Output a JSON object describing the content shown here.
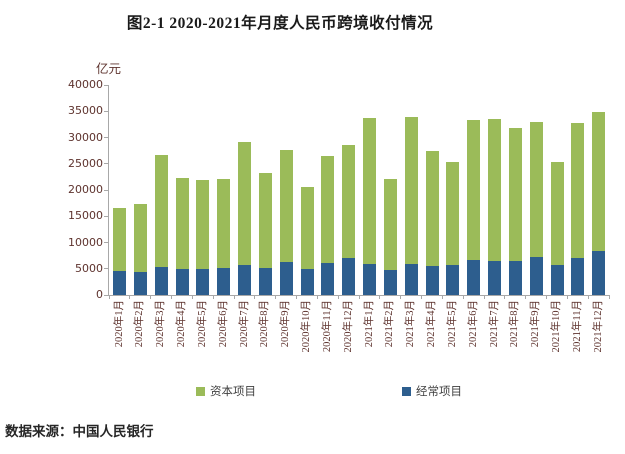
{
  "page": {
    "title": "图2-1 2020-2021年月度人民币跨境收付情况",
    "source_note": "数据来源：中国人民银行"
  },
  "colors": {
    "axis_text": "#5e332e",
    "axis_line": "#a8a8a8",
    "capital_green": "#9BBB59",
    "current_blue": "#2D5E8E"
  },
  "chart_data": {
    "type": "bar",
    "stacked": true,
    "title": "图2-1 2020-2021年月度人民币跨境收付情况",
    "unit_label": "亿元",
    "xlabel": "",
    "ylabel": "亿元",
    "ylim": [
      0,
      40000
    ],
    "y_ticks": [
      0,
      5000,
      10000,
      15000,
      20000,
      25000,
      30000,
      35000,
      40000
    ],
    "grid": false,
    "legend_position": "bottom",
    "categories": [
      "2020年1月",
      "2020年2月",
      "2020年3月",
      "2020年4月",
      "2020年5月",
      "2020年6月",
      "2020年7月",
      "2020年8月",
      "2020年9月",
      "2020年10月",
      "2020年11月",
      "2020年12月",
      "2021年1月",
      "2021年2月",
      "2021年3月",
      "2021年4月",
      "2021年5月",
      "2021年6月",
      "2021年7月",
      "2021年8月",
      "2021年9月",
      "2021年10月",
      "2021年11月",
      "2021年12月"
    ],
    "series": [
      {
        "name": "经常项目",
        "color": "#2D5E8E",
        "stack_order": "bottom",
        "values": [
          4500,
          4400,
          5300,
          5000,
          5000,
          5100,
          5700,
          5100,
          6200,
          5000,
          6100,
          7000,
          5900,
          4700,
          6000,
          5500,
          5700,
          6700,
          6400,
          6500,
          7300,
          5800,
          7100,
          8400
        ]
      },
      {
        "name": "资本项目",
        "color": "#9BBB59",
        "stack_order": "top",
        "values": [
          12000,
          13000,
          21300,
          17200,
          16900,
          17000,
          23500,
          18200,
          21500,
          15600,
          20400,
          21500,
          27800,
          17400,
          27900,
          21900,
          19600,
          26700,
          27100,
          25400,
          25600,
          19500,
          25700,
          26500
        ]
      }
    ],
    "stack_totals": [
      16500,
      17400,
      26600,
      22200,
      21900,
      22100,
      29200,
      23300,
      27700,
      20600,
      26500,
      28500,
      33700,
      22100,
      33900,
      27400,
      25300,
      33400,
      33500,
      31900,
      32900,
      25300,
      32800,
      34900
    ],
    "legend": [
      {
        "label": "资本项目",
        "color": "#9BBB59"
      },
      {
        "label": "经常项目",
        "color": "#2D5E8E"
      }
    ]
  }
}
